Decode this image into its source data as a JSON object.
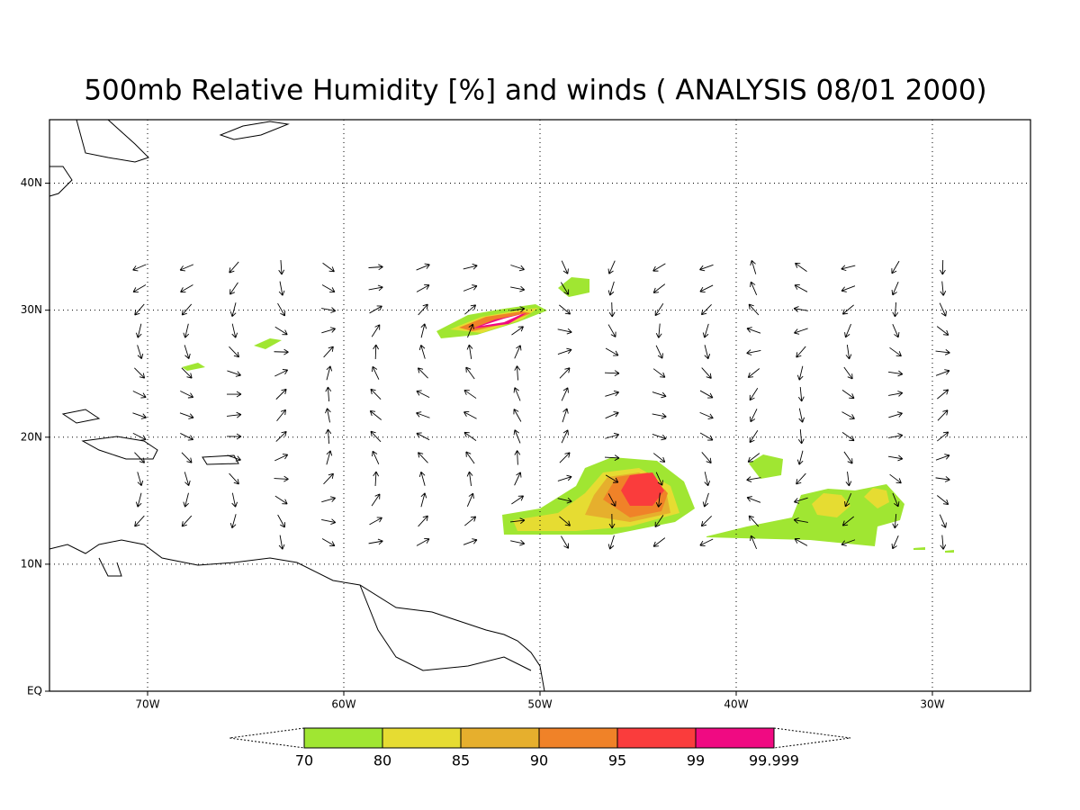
{
  "title": "500mb Relative Humidity [%] and winds ( ANALYSIS 08/01 2000)",
  "map": {
    "lon_range": [
      -75,
      -25
    ],
    "lat_range": [
      0,
      45
    ],
    "lon_ticks": [
      {
        "value": -70,
        "label": "70W"
      },
      {
        "value": -60,
        "label": "60W"
      },
      {
        "value": -50,
        "label": "50W"
      },
      {
        "value": -40,
        "label": "40W"
      },
      {
        "value": -30,
        "label": "30W"
      }
    ],
    "lat_ticks": [
      {
        "value": 0,
        "label": "EQ"
      },
      {
        "value": 10,
        "label": "10N"
      },
      {
        "value": 20,
        "label": "20N"
      },
      {
        "value": 30,
        "label": "30N"
      },
      {
        "value": 40,
        "label": "40N"
      }
    ],
    "grid": true
  },
  "colorbar": {
    "levels": [
      70,
      80,
      85,
      90,
      95,
      99,
      99.999
    ],
    "colors": [
      "#a0e632",
      "#e6dc32",
      "#e6af2d",
      "#f08228",
      "#fa3c3c",
      "#f00a82"
    ]
  }
}
